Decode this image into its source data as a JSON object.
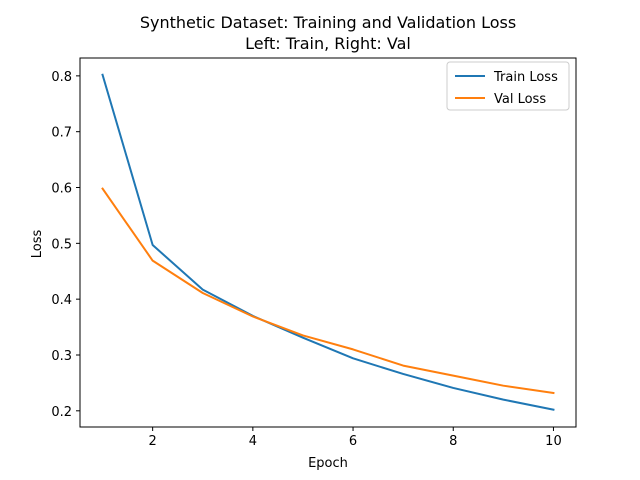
{
  "chart_data": {
    "type": "line",
    "title": "Synthetic Dataset: Training and Validation Loss",
    "subtitle": "Left: Train, Right: Val",
    "xlabel": "Epoch",
    "ylabel": "Loss",
    "xlim": [
      0.55,
      10.45
    ],
    "ylim": [
      0.171,
      0.832
    ],
    "xticks": [
      2,
      4,
      6,
      8,
      10
    ],
    "xtick_labels": [
      "2",
      "4",
      "6",
      "8",
      "10"
    ],
    "yticks": [
      0.2,
      0.3,
      0.4,
      0.5,
      0.6,
      0.7,
      0.8
    ],
    "ytick_labels": [
      "0.2",
      "0.3",
      "0.4",
      "0.5",
      "0.6",
      "0.7",
      "0.8"
    ],
    "grid": false,
    "legend_position": "top-right",
    "x": [
      1,
      2,
      3,
      4,
      5,
      6,
      7,
      8,
      9,
      10
    ],
    "series": [
      {
        "name": "Train Loss",
        "color": "#1f77b4",
        "values": [
          0.802,
          0.497,
          0.417,
          0.37,
          0.331,
          0.294,
          0.266,
          0.241,
          0.22,
          0.202
        ]
      },
      {
        "name": "Val Loss",
        "color": "#ff7f0e",
        "values": [
          0.598,
          0.469,
          0.411,
          0.369,
          0.335,
          0.31,
          0.281,
          0.263,
          0.245,
          0.232
        ]
      }
    ]
  }
}
